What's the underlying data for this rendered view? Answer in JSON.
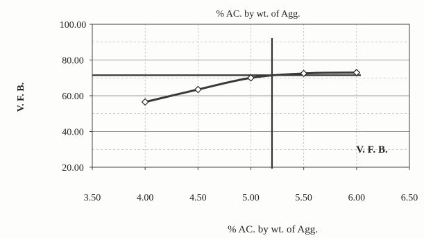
{
  "chart_data": {
    "type": "line",
    "title": "% AC. by  wt. of Agg.",
    "xlabel": "% AC. by  wt. of Agg.",
    "ylabel": "V. F. B.",
    "annotation": "V. F. B.",
    "xlim": [
      3.5,
      6.5
    ],
    "ylim": [
      20,
      100
    ],
    "x_ticks": [
      "3.50",
      "4.00",
      "4.50",
      "5.00",
      "5.50",
      "6.00",
      "6.50"
    ],
    "y_ticks": [
      "20.00",
      "40.00",
      "60.00",
      "80.00",
      "100.00"
    ],
    "grid": true,
    "legend": "none",
    "series": [
      {
        "x": [
          4.0,
          4.5,
          5.0,
          5.5,
          6.0
        ],
        "y": [
          56.5,
          63.5,
          70.0,
          72.5,
          73.0
        ],
        "marker": "diamond"
      }
    ],
    "reference_lines": {
      "horizontal_y": 71.5,
      "vertical_x": 5.2
    },
    "colors": {
      "curve": "#3a3a3a",
      "grid": "#9a9a9a",
      "axis": "#444444"
    }
  }
}
